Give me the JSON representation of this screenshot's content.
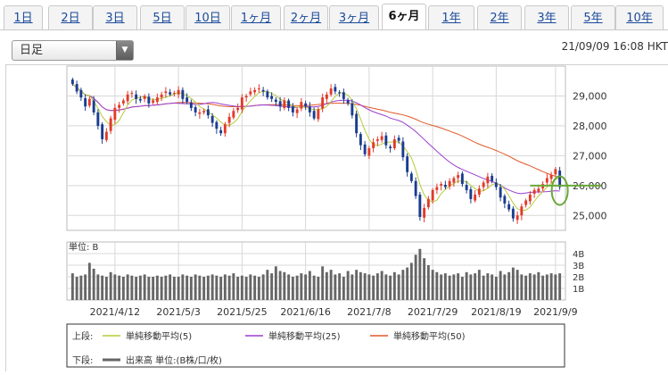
{
  "tabs": [
    {
      "label": "1日",
      "active": false
    },
    {
      "label": "2日",
      "active": false
    },
    {
      "label": "3日",
      "active": false
    },
    {
      "label": "5日",
      "active": false
    },
    {
      "label": "10日",
      "active": false
    },
    {
      "label": "1ヶ月",
      "active": false
    },
    {
      "label": "2ヶ月",
      "active": false
    },
    {
      "label": "3ヶ月",
      "active": false
    },
    {
      "label": "6ヶ月",
      "active": true
    },
    {
      "label": "1年",
      "active": false
    },
    {
      "label": "2年",
      "active": false
    },
    {
      "label": "3年",
      "active": false
    },
    {
      "label": "5年",
      "active": false
    },
    {
      "label": "10年",
      "active": false
    }
  ],
  "period_select": {
    "value": "日足",
    "icon": "triangle-down-icon"
  },
  "timestamp": "21/09/09 16:08 HKT",
  "chart_data": {
    "type": "candlestick",
    "price_axis": {
      "ticks": [
        "29,000",
        "28,000",
        "27,000",
        "26,000",
        "25,000"
      ],
      "tick_values": [
        29000,
        28000,
        27000,
        26000,
        25000
      ],
      "range": [
        24500,
        30000
      ]
    },
    "volume_axis": {
      "unit_label": "単位: B",
      "ticks": [
        "4B",
        "3B",
        "2B",
        "1B"
      ],
      "tick_values": [
        4,
        3,
        2,
        1
      ],
      "range": [
        0,
        5
      ]
    },
    "x_labels": [
      "2021/4/12",
      "2021/5/3",
      "2021/5/25",
      "2021/6/16",
      "2021/7/8",
      "2021/7/29",
      "2021/8/19",
      "2021/9/9"
    ],
    "x_label_positions": [
      10,
      25,
      40,
      55,
      70,
      85,
      100,
      114
    ],
    "closes": [
      29400,
      29150,
      28950,
      28650,
      28900,
      28450,
      28000,
      27550,
      27800,
      28250,
      28600,
      28700,
      28850,
      29050,
      29100,
      28900,
      28850,
      29000,
      28750,
      28850,
      28950,
      29050,
      29150,
      29050,
      29100,
      29200,
      28900,
      28800,
      28600,
      28450,
      28450,
      28500,
      28350,
      28100,
      27900,
      27750,
      28050,
      28300,
      28500,
      28600,
      28950,
      29000,
      29150,
      29200,
      29250,
      29150,
      28950,
      28900,
      28800,
      28650,
      28850,
      28600,
      28450,
      28550,
      28800,
      28650,
      28450,
      28250,
      28550,
      28950,
      29050,
      29250,
      29150,
      29100,
      28900,
      28750,
      28350,
      27750,
      27350,
      27050,
      27250,
      27450,
      27550,
      27650,
      27350,
      27250,
      27550,
      27500,
      26950,
      26450,
      26150,
      25650,
      24950,
      25250,
      25550,
      25850,
      25950,
      26050,
      25950,
      26150,
      26250,
      26350,
      26050,
      25850,
      25550,
      25700,
      25900,
      26100,
      26300,
      26150,
      25950,
      25600,
      25400,
      25200,
      24900,
      25000,
      25300,
      25500,
      25700,
      25850,
      25900,
      26050,
      26250,
      26350,
      26550,
      25950
    ],
    "volume": [
      2.3,
      2.0,
      2.1,
      2.2,
      3.2,
      2.7,
      2.2,
      2.1,
      2.0,
      2.4,
      2.2,
      2.1,
      2.0,
      2.2,
      2.1,
      2.0,
      2.1,
      2.2,
      2.0,
      2.0,
      2.1,
      2.0,
      2.1,
      2.2,
      2.0,
      2.0,
      2.2,
      2.1,
      2.0,
      2.2,
      2.1,
      2.0,
      2.1,
      2.2,
      2.1,
      2.0,
      2.2,
      2.1,
      2.3,
      2.0,
      2.1,
      2.0,
      2.2,
      2.1,
      2.0,
      2.2,
      2.6,
      2.3,
      2.9,
      2.5,
      2.4,
      2.2,
      2.0,
      2.1,
      2.3,
      2.2,
      2.5,
      2.1,
      2.0,
      2.9,
      2.4,
      2.6,
      2.2,
      2.3,
      2.0,
      2.5,
      2.2,
      2.6,
      2.4,
      2.3,
      2.2,
      2.1,
      2.3,
      2.5,
      2.2,
      2.1,
      2.4,
      2.2,
      2.6,
      2.8,
      3.2,
      3.9,
      4.4,
      3.6,
      3.0,
      2.6,
      2.4,
      2.2,
      2.3,
      2.1,
      2.2,
      2.3,
      2.0,
      2.4,
      2.2,
      2.3,
      2.6,
      2.1,
      2.3,
      2.2,
      2.0,
      2.5,
      2.2,
      2.4,
      2.8,
      2.6,
      2.2,
      2.1,
      2.3,
      2.2,
      2.4,
      2.1,
      2.2,
      2.3,
      2.2,
      2.3
    ],
    "legend": [
      {
        "section": "上段:",
        "name": "単純移動平均(5)",
        "color": "#b5cc3a"
      },
      {
        "section": "",
        "name": "単純移動平均(25)",
        "color": "#9a3fd0"
      },
      {
        "section": "",
        "name": "単純移動平均(50)",
        "color": "#e05a2a"
      },
      {
        "section": "下段:",
        "name": "出来高 単位:(B株/口/枚)",
        "color": "#666666"
      }
    ],
    "annotations": [
      {
        "type": "horizontal-line",
        "value": 26000,
        "color": "#6aa83a"
      },
      {
        "type": "ellipse",
        "label": "latest-candle-highlight",
        "color": "#6aa83a"
      }
    ],
    "colors": {
      "up": "#e23a2a",
      "down": "#1a3c8f",
      "volume": "#666666",
      "grid": "#d8d8d8"
    }
  }
}
